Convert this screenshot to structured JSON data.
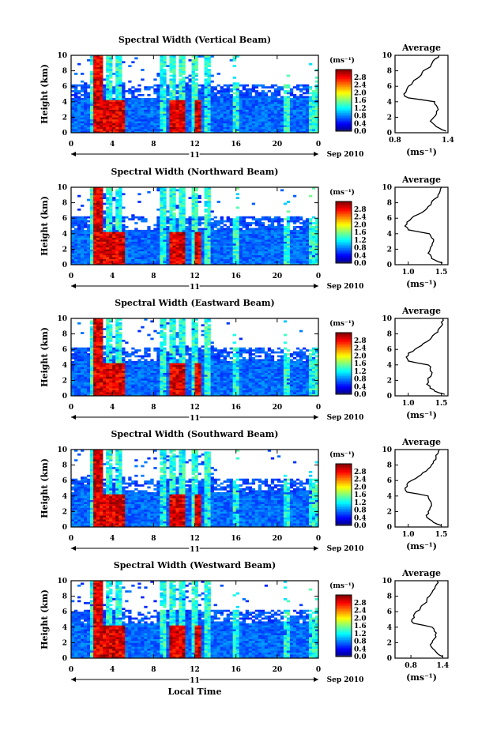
{
  "figure": {
    "month_label": "Sep 2010",
    "day_label": "11",
    "xlabel": "Local Time",
    "ylabel": "Height (km)",
    "unit_label": "(ms⁻¹)",
    "avg_title": "Average",
    "avg_xlabel": "(ms⁻¹)"
  },
  "chart_data": [
    {
      "type": "heatmap",
      "title": "Spectral Width (Vertical Beam)",
      "x_ticks": [
        "0",
        "4",
        "8",
        "12",
        "16",
        "20",
        "0"
      ],
      "y_ticks": [
        "0",
        "2",
        "4",
        "6",
        "8",
        "10"
      ],
      "xlim": [
        0,
        24
      ],
      "ylim": [
        0,
        10
      ],
      "colorbar_ticks": [
        "0.0",
        "0.4",
        "0.8",
        "1.2",
        "1.6",
        "2.0",
        "2.4",
        "2.8"
      ],
      "colorbar_range": [
        0,
        3.2
      ],
      "avg_profile": {
        "xlim": [
          0.8,
          1.4
        ],
        "x_ticks": [
          "0.8",
          "1.4"
        ],
        "height_km": [
          0.2,
          0.6,
          1.0,
          1.5,
          2.0,
          2.5,
          3.0,
          3.5,
          4.0,
          4.5,
          5.0,
          5.5,
          6.0,
          6.5,
          7.0,
          7.5,
          8.0,
          8.5,
          9.0,
          9.5,
          10.0
        ],
        "width": [
          1.38,
          1.3,
          1.25,
          1.2,
          1.24,
          1.27,
          1.29,
          1.27,
          1.25,
          0.95,
          0.9,
          0.93,
          0.95,
          1.0,
          1.05,
          1.1,
          1.12,
          1.2,
          1.22,
          1.25,
          1.3
        ]
      }
    },
    {
      "type": "heatmap",
      "title": "Spectral Width (Northward Beam)",
      "x_ticks": [
        "0",
        "4",
        "8",
        "12",
        "16",
        "20",
        "0"
      ],
      "y_ticks": [
        "0",
        "2",
        "4",
        "6",
        "8",
        "10"
      ],
      "xlim": [
        0,
        24
      ],
      "ylim": [
        0,
        10
      ],
      "colorbar_ticks": [
        "0.0",
        "0.4",
        "0.8",
        "1.2",
        "1.6",
        "2.0",
        "2.4",
        "2.8"
      ],
      "colorbar_range": [
        0,
        3.2
      ],
      "avg_profile": {
        "xlim": [
          0.8,
          1.6
        ],
        "x_ticks": [
          "1.0",
          "1.5"
        ],
        "height_km": [
          0.2,
          0.6,
          1.0,
          1.5,
          2.0,
          2.5,
          3.0,
          3.5,
          4.0,
          4.5,
          5.0,
          5.5,
          6.0,
          6.5,
          7.0,
          7.5,
          8.0,
          8.5,
          9.0,
          9.5,
          10.0
        ],
        "width": [
          1.52,
          1.4,
          1.35,
          1.3,
          1.33,
          1.36,
          1.38,
          1.35,
          1.32,
          1.0,
          0.95,
          0.98,
          1.05,
          1.15,
          1.25,
          1.3,
          1.35,
          1.4,
          1.45,
          1.48,
          1.5
        ]
      }
    },
    {
      "type": "heatmap",
      "title": "Spectral Width (Eastward Beam)",
      "x_ticks": [
        "0",
        "4",
        "8",
        "12",
        "16",
        "20",
        "0"
      ],
      "y_ticks": [
        "0",
        "2",
        "4",
        "6",
        "8",
        "10"
      ],
      "xlim": [
        0,
        24
      ],
      "ylim": [
        0,
        10
      ],
      "colorbar_ticks": [
        "0.0",
        "0.4",
        "0.8",
        "1.2",
        "1.6",
        "2.0",
        "2.4",
        "2.8"
      ],
      "colorbar_range": [
        0,
        3.2
      ],
      "avg_profile": {
        "xlim": [
          0.8,
          1.6
        ],
        "x_ticks": [
          "1.0",
          "1.5"
        ],
        "height_km": [
          0.2,
          0.6,
          1.0,
          1.5,
          2.0,
          2.5,
          3.0,
          3.5,
          4.0,
          4.5,
          5.0,
          5.5,
          6.0,
          6.5,
          7.0,
          7.5,
          8.0,
          8.5,
          9.0,
          9.5,
          10.0
        ],
        "width": [
          1.55,
          1.4,
          1.33,
          1.28,
          1.3,
          1.34,
          1.36,
          1.33,
          1.3,
          1.0,
          0.97,
          1.0,
          1.1,
          1.2,
          1.28,
          1.35,
          1.4,
          1.45,
          1.5,
          1.5,
          1.52
        ]
      }
    },
    {
      "type": "heatmap",
      "title": "Spectral Width (Southward Beam)",
      "x_ticks": [
        "0",
        "4",
        "8",
        "12",
        "16",
        "20",
        "0"
      ],
      "y_ticks": [
        "0",
        "2",
        "4",
        "6",
        "8",
        "10"
      ],
      "xlim": [
        0,
        24
      ],
      "ylim": [
        0,
        10
      ],
      "colorbar_ticks": [
        "0.0",
        "0.4",
        "0.8",
        "1.2",
        "1.6",
        "2.0",
        "2.4",
        "2.8"
      ],
      "colorbar_range": [
        0,
        3.2
      ],
      "avg_profile": {
        "xlim": [
          0.8,
          1.6
        ],
        "x_ticks": [
          "1.0",
          "1.5"
        ],
        "height_km": [
          0.2,
          0.6,
          1.0,
          1.5,
          2.0,
          2.5,
          3.0,
          3.5,
          4.0,
          4.5,
          5.0,
          5.5,
          6.0,
          6.5,
          7.0,
          7.5,
          8.0,
          8.5,
          9.0,
          9.5,
          10.0
        ],
        "width": [
          1.5,
          1.38,
          1.32,
          1.27,
          1.3,
          1.33,
          1.35,
          1.32,
          1.3,
          0.98,
          0.95,
          0.98,
          1.05,
          1.15,
          1.22,
          1.3,
          1.35,
          1.38,
          1.42,
          1.45,
          1.47
        ]
      }
    },
    {
      "type": "heatmap",
      "title": "Spectral Width (Westward Beam)",
      "x_ticks": [
        "0",
        "4",
        "8",
        "12",
        "16",
        "20",
        "0"
      ],
      "y_ticks": [
        "0",
        "2",
        "4",
        "6",
        "8",
        "10"
      ],
      "xlim": [
        0,
        24
      ],
      "ylim": [
        0,
        10
      ],
      "colorbar_ticks": [
        "0.0",
        "0.4",
        "0.8",
        "1.2",
        "1.6",
        "2.0",
        "2.4",
        "2.8"
      ],
      "colorbar_range": [
        0,
        3.2
      ],
      "avg_profile": {
        "xlim": [
          0.5,
          1.5
        ],
        "x_ticks": [
          "0.8",
          "1.4"
        ],
        "height_km": [
          0.2,
          0.6,
          1.0,
          1.5,
          2.0,
          2.5,
          3.0,
          3.5,
          4.0,
          4.5,
          5.0,
          5.5,
          6.0,
          6.5,
          7.0,
          7.5,
          8.0,
          8.5,
          9.0,
          9.5,
          10.0
        ],
        "width": [
          1.4,
          1.3,
          1.25,
          1.18,
          1.2,
          1.24,
          1.26,
          1.24,
          1.2,
          0.85,
          0.82,
          0.85,
          0.9,
          0.98,
          1.05,
          1.1,
          1.15,
          1.2,
          1.25,
          1.28,
          1.3
        ]
      }
    }
  ]
}
